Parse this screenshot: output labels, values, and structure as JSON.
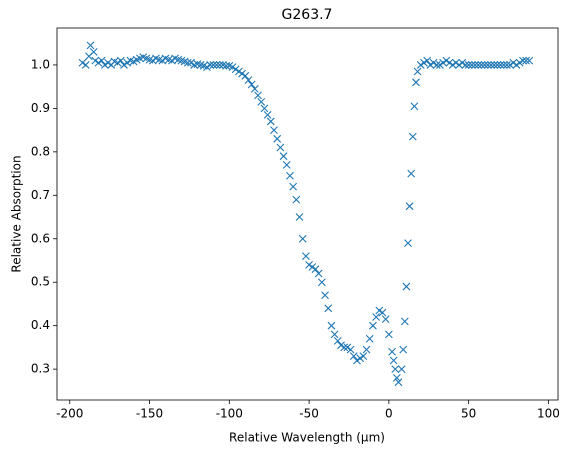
{
  "chart_data": {
    "type": "scatter",
    "title": "G263.7",
    "xlabel": "Relative Wavelength (μm)",
    "ylabel": "Relative Absorption",
    "marker": "x",
    "color": "#1f77b4",
    "xlim": [
      -208,
      106
    ],
    "ylim": [
      0.229,
      1.085
    ],
    "xticks": [
      -200,
      -150,
      -100,
      -50,
      0,
      50,
      100
    ],
    "yticks": [
      0.3,
      0.4,
      0.5,
      0.6,
      0.7,
      0.8,
      0.9,
      {
        "value": 1,
        "label": "1.0"
      }
    ],
    "x": [
      -192,
      -190,
      -188,
      -187,
      -185,
      -184,
      -182,
      -180,
      -178,
      -176,
      -174,
      -172,
      -170,
      -168,
      -166,
      -164,
      -162,
      -160,
      -158,
      -156,
      -154,
      -152,
      -150,
      -148,
      -146,
      -144,
      -142,
      -140,
      -138,
      -136,
      -134,
      -132,
      -130,
      -128,
      -126,
      -124,
      -122,
      -120,
      -118,
      -116,
      -114,
      -112,
      -110,
      -108,
      -106,
      -104,
      -102,
      -100,
      -98,
      -96,
      -94,
      -92,
      -90,
      -88,
      -86,
      -84,
      -82,
      -80,
      -78,
      -76,
      -74,
      -72,
      -70,
      -68,
      -66,
      -64,
      -62,
      -60,
      -58,
      -56,
      -54,
      -52,
      -50,
      -48,
      -46,
      -44,
      -42,
      -40,
      -38,
      -36,
      -34,
      -32,
      -30,
      -28,
      -26,
      -24,
      -22,
      -20,
      -18,
      -16,
      -14,
      -12,
      -10,
      -8,
      -6,
      -4,
      -2,
      0,
      2,
      3,
      4,
      5,
      6,
      8,
      9,
      10,
      11,
      12,
      13,
      14,
      15,
      16,
      17,
      18,
      20,
      22,
      24,
      26,
      28,
      30,
      32,
      34,
      36,
      38,
      40,
      42,
      44,
      46,
      48,
      50,
      52,
      54,
      56,
      58,
      60,
      62,
      64,
      66,
      68,
      70,
      72,
      74,
      76,
      78,
      80,
      82,
      84,
      86,
      88
    ],
    "y": [
      1.005,
      1.0,
      1.02,
      1.045,
      1.03,
      1.01,
      1.005,
      1.01,
      1.0,
      1.005,
      1.0,
      1.008,
      1.005,
      1.01,
      1.0,
      1.005,
      1.01,
      1.008,
      1.012,
      1.015,
      1.018,
      1.015,
      1.012,
      1.01,
      1.015,
      1.012,
      1.01,
      1.015,
      1.012,
      1.01,
      1.015,
      1.012,
      1.01,
      1.008,
      1.005,
      1.005,
      1.0,
      1.002,
      1.0,
      0.998,
      0.995,
      1.0,
      1.0,
      1.0,
      1.0,
      1.0,
      0.998,
      0.998,
      0.995,
      0.99,
      0.985,
      0.98,
      0.975,
      0.965,
      0.955,
      0.945,
      0.93,
      0.915,
      0.9,
      0.885,
      0.87,
      0.85,
      0.83,
      0.81,
      0.79,
      0.77,
      0.745,
      0.72,
      0.69,
      0.65,
      0.6,
      0.56,
      0.54,
      0.535,
      0.53,
      0.52,
      0.5,
      0.47,
      0.44,
      0.4,
      0.38,
      0.365,
      0.355,
      0.35,
      0.35,
      0.345,
      0.33,
      0.32,
      0.325,
      0.33,
      0.345,
      0.37,
      0.4,
      0.42,
      0.435,
      0.43,
      0.415,
      0.38,
      0.34,
      0.32,
      0.3,
      0.28,
      0.27,
      0.3,
      0.345,
      0.41,
      0.49,
      0.59,
      0.675,
      0.75,
      0.835,
      0.905,
      0.96,
      0.985,
      1.0,
      1.005,
      1.01,
      1.0,
      1.005,
      1.0,
      1.0,
      1.005,
      1.01,
      1.005,
      1.0,
      1.005,
      1.0,
      1.005,
      1.0,
      1.0,
      1.0,
      1.0,
      1.0,
      1.0,
      1.0,
      1.0,
      1.0,
      1.0,
      1.0,
      1.0,
      1.0,
      1.0,
      1.0,
      1.005,
      1.0,
      1.005,
      1.01,
      1.01,
      1.01
    ]
  }
}
